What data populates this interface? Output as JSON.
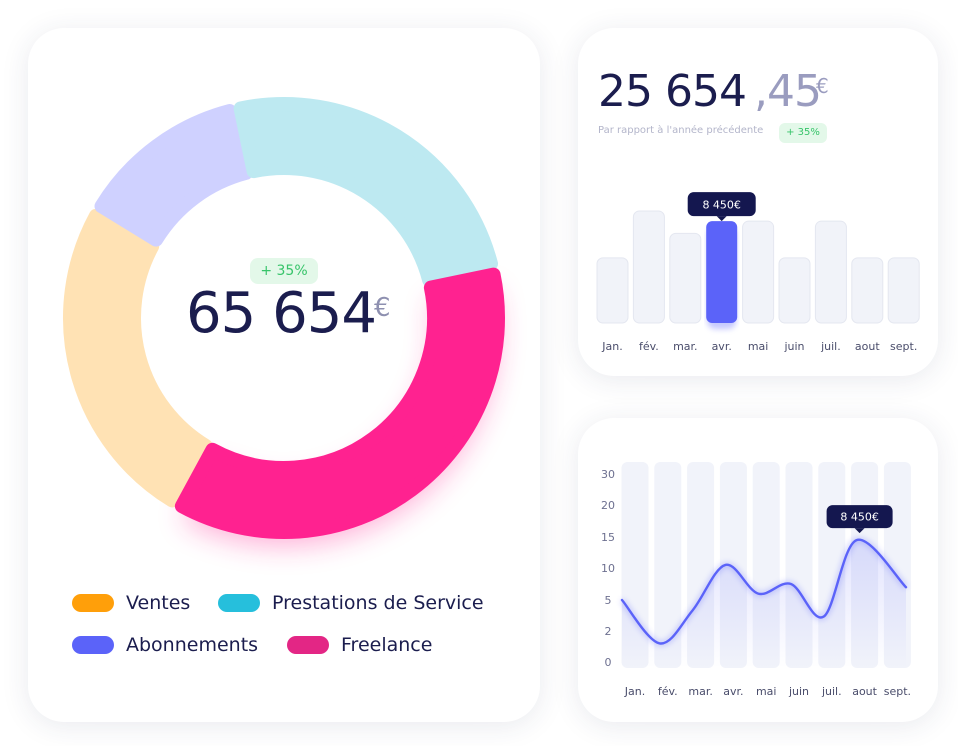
{
  "colors": {
    "ventes": "#ffe2b4",
    "prestations": "#bde9f1",
    "abonnements": "#cfd1ff",
    "freelance": "#ff2290",
    "accent_blue": "#5b63f9",
    "navy": "#14174f",
    "bar_inactive": "#f1f3f9",
    "positive": "#37c46a"
  },
  "donut_card": {
    "badge": "+ 35%",
    "total": "65 654",
    "currency": "€",
    "legend": [
      {
        "label": "Ventes",
        "color": "#ff9f0a"
      },
      {
        "label": "Prestations de Service",
        "color": "#26bfdc"
      },
      {
        "label": "Abonnements",
        "color": "#5b63f9"
      },
      {
        "label": "Freelance",
        "color": "#e32685"
      }
    ]
  },
  "bar_card": {
    "amount_int": "25 654",
    "amount_dec": ",45",
    "currency": "€",
    "caption": "Par rapport à l'année précédente",
    "badge": "+ 35%"
  },
  "chart_data": [
    {
      "type": "pie",
      "title": "",
      "categories": [
        "Ventes",
        "Prestations de Service",
        "Abonnements",
        "Freelance"
      ],
      "values": [
        25,
        25,
        13,
        37
      ]
    },
    {
      "type": "bar",
      "title": "",
      "categories": [
        "Jan.",
        "fév.",
        "mar.",
        "avr.",
        "mai",
        "juin",
        "juil.",
        "aout",
        "sept."
      ],
      "values": [
        64,
        110,
        88,
        100,
        100,
        64,
        100,
        64,
        64
      ],
      "highlight_index": 3,
      "tooltip": "8 450€",
      "ylim": [
        0,
        110
      ]
    },
    {
      "type": "line",
      "title": "",
      "categories": [
        "Jan.",
        "fév.",
        "mar.",
        "avr.",
        "mai",
        "juin",
        "juil.",
        "aout",
        "sept."
      ],
      "y_ticks": [
        "0",
        "2",
        "5",
        "10",
        "15",
        "20",
        "30"
      ],
      "values": [
        5,
        1.2,
        4,
        10.5,
        6,
        7.5,
        3.4,
        14.5,
        7
      ],
      "highlight_index": 7,
      "tooltip": "8 450€",
      "ylim": [
        0,
        30
      ]
    }
  ]
}
